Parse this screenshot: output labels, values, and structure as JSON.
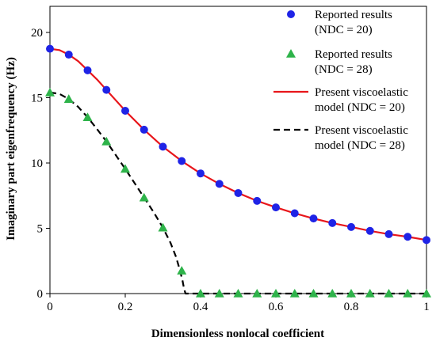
{
  "chart_data": {
    "type": "scatter",
    "xlabel": "Dimensionless nonlocal coefficient",
    "ylabel": "Imaginary part eigenfrequency (Hz)",
    "xlim": [
      0,
      1
    ],
    "ylim": [
      0,
      22
    ],
    "xticks": [
      "0",
      "0.2",
      "0.4",
      "0.6",
      "0.8",
      "1"
    ],
    "yticks": [
      "0",
      "5",
      "10",
      "15",
      "20"
    ],
    "xtick_values": [
      0,
      0.2,
      0.4,
      0.6,
      0.8,
      1
    ],
    "ytick_values": [
      0,
      5,
      10,
      15,
      20
    ],
    "grid": false,
    "legend_position": "top-right",
    "series": [
      {
        "name": "Reported results (NDC = 20)",
        "legend_lines": [
          "Reported results",
          "(NDC = 20)"
        ],
        "kind": "markers",
        "marker": "circle",
        "color": "#1f23e6",
        "x": [
          0,
          0.05,
          0.1,
          0.15,
          0.2,
          0.25,
          0.3,
          0.35,
          0.4,
          0.45,
          0.5,
          0.55,
          0.6,
          0.65,
          0.7,
          0.75,
          0.8,
          0.85,
          0.9,
          0.95,
          1
        ],
        "y": [
          18.75,
          18.3,
          17.1,
          15.6,
          14.0,
          12.55,
          11.25,
          10.15,
          9.2,
          8.4,
          7.7,
          7.1,
          6.6,
          6.15,
          5.75,
          5.4,
          5.1,
          4.8,
          4.55,
          4.35,
          4.1
        ]
      },
      {
        "name": "Reported results (NDC = 28)",
        "legend_lines": [
          "Reported results",
          "(NDC = 28)"
        ],
        "kind": "markers",
        "marker": "triangle",
        "color": "#2eb34a",
        "x": [
          0,
          0.05,
          0.1,
          0.15,
          0.2,
          0.25,
          0.3,
          0.35,
          0.4,
          0.45,
          0.5,
          0.55,
          0.6,
          0.65,
          0.7,
          0.75,
          0.8,
          0.85,
          0.9,
          0.95,
          1
        ],
        "y": [
          15.4,
          14.9,
          13.5,
          11.65,
          9.55,
          7.35,
          5.05,
          1.75,
          0,
          0,
          0,
          0,
          0,
          0,
          0,
          0,
          0,
          0,
          0,
          0,
          0
        ]
      },
      {
        "name": "Present viscoelastic model (NDC = 20)",
        "legend_lines": [
          "Present viscoelastic",
          "model (NDC = 20)"
        ],
        "kind": "line",
        "dash": "solid",
        "color": "#e8161b",
        "x": [
          0,
          0.025,
          0.05,
          0.075,
          0.1,
          0.125,
          0.15,
          0.175,
          0.2,
          0.25,
          0.3,
          0.35,
          0.4,
          0.45,
          0.5,
          0.55,
          0.6,
          0.65,
          0.7,
          0.75,
          0.8,
          0.85,
          0.9,
          0.95,
          1
        ],
        "y": [
          18.75,
          18.65,
          18.3,
          17.8,
          17.1,
          16.4,
          15.6,
          14.8,
          14.0,
          12.55,
          11.25,
          10.15,
          9.2,
          8.4,
          7.7,
          7.1,
          6.6,
          6.15,
          5.75,
          5.4,
          5.1,
          4.8,
          4.55,
          4.35,
          4.1
        ]
      },
      {
        "name": "Present viscoelastic model (NDC = 28)",
        "legend_lines": [
          "Present viscoelastic",
          "model (NDC = 28)"
        ],
        "kind": "line",
        "dash": "dashed",
        "color": "#000000",
        "x": [
          0,
          0.025,
          0.05,
          0.075,
          0.1,
          0.125,
          0.15,
          0.175,
          0.2,
          0.225,
          0.25,
          0.275,
          0.3,
          0.32,
          0.335,
          0.345,
          0.352,
          0.356,
          0.36,
          0.4,
          0.5,
          0.6,
          0.7,
          0.8,
          0.9,
          1
        ],
        "y": [
          15.4,
          15.3,
          14.9,
          14.3,
          13.5,
          12.6,
          11.65,
          10.6,
          9.55,
          8.45,
          7.35,
          6.25,
          5.05,
          3.9,
          2.8,
          1.8,
          1.0,
          0.4,
          0,
          0,
          0,
          0,
          0,
          0,
          0,
          0
        ]
      }
    ]
  }
}
